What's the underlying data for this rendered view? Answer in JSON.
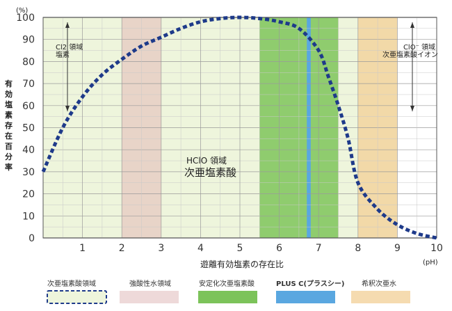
{
  "chart_data": {
    "type": "line",
    "title": "",
    "xlabel": "遊離有効塩素の存在比",
    "ylabel": "有効塩素存在百分率",
    "y_unit": "(%)",
    "x_unit": "(pH)",
    "xlim": [
      0,
      10
    ],
    "ylim": [
      0,
      100
    ],
    "x_ticks": [
      "1",
      "2",
      "3",
      "4",
      "5",
      "6",
      "7",
      "8",
      "9",
      "10"
    ],
    "y_ticks": [
      "0",
      "10",
      "20",
      "30",
      "40",
      "50",
      "60",
      "70",
      "80",
      "90",
      "100"
    ],
    "grid": true,
    "series": [
      {
        "name": "次亜塩素酸領域",
        "style": "dashed",
        "color": "#1e3a8a",
        "x": [
          0,
          0.5,
          1,
          1.5,
          2,
          2.5,
          3,
          3.5,
          4,
          4.5,
          5,
          5.5,
          6,
          6.5,
          7,
          7.25,
          7.5,
          7.75,
          8,
          8.5,
          9,
          9.5,
          10
        ],
        "y": [
          30,
          50,
          64,
          74,
          81,
          87,
          91,
          95,
          98,
          99.5,
          100,
          99.5,
          98,
          95,
          85,
          73,
          60,
          45,
          25,
          13,
          6,
          2,
          0
        ]
      }
    ],
    "regions": [
      {
        "name": "次亜塩素酸領域",
        "x": [
          0,
          8
        ],
        "color": "#eef5dc"
      },
      {
        "name": "強酸性水領域",
        "x": [
          2,
          3
        ],
        "color": "#e8d4c8"
      },
      {
        "name": "安定化次亜塩素酸",
        "x": [
          5.5,
          7.5
        ],
        "color": "#8fcc6e"
      },
      {
        "name": "PLUS C(プラスシー)",
        "x": [
          6.7,
          6.8
        ],
        "color": "#5aa7e0"
      },
      {
        "name": "希釈次亜水",
        "x": [
          8,
          9
        ],
        "color": "#f2d9a8"
      }
    ],
    "annotations": {
      "cl2": [
        "Cl2 領域",
        "塩素"
      ],
      "clo": [
        "ClO⁻ 領域",
        "次亜塩素酸イオン"
      ],
      "hclo": [
        "HClO 領域",
        "次亜塩素酸"
      ]
    },
    "legend": [
      {
        "label": "次亜塩素酸領域",
        "color": "#eef5dc",
        "border": "dashed"
      },
      {
        "label": "強酸性水領域",
        "color": "#eed9d9"
      },
      {
        "label": "安定化次亜塩素酸",
        "color": "#7cc35a"
      },
      {
        "label": "PLUS C(プラスシー)",
        "color": "#5aa7e0",
        "bold": true
      },
      {
        "label": "希釈次亜水",
        "color": "#f5dbb0"
      }
    ],
    "legend_position": "bottom"
  }
}
